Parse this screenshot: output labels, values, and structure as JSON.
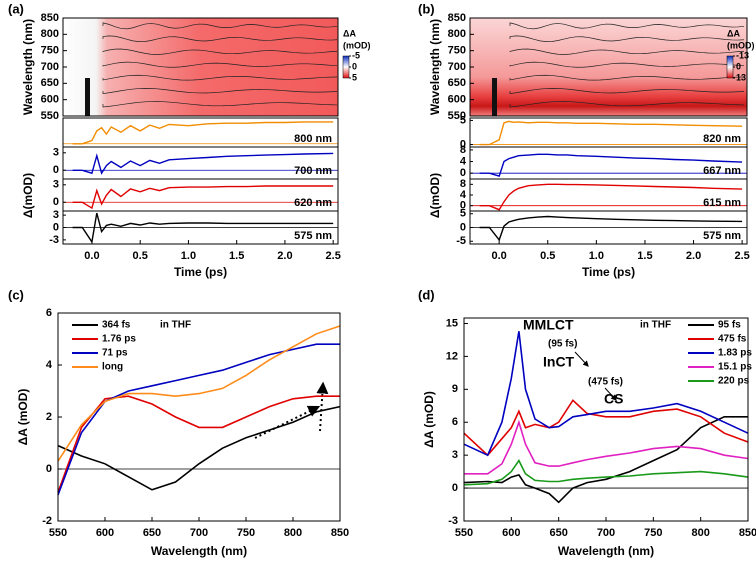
{
  "chart_data": [
    {
      "type": "heatmap",
      "panel": "(a)",
      "ylabel": "Wavelength (nm)",
      "ylim": [
        550,
        850
      ],
      "yticks": [
        550,
        600,
        650,
        700,
        750,
        800,
        850
      ],
      "colorbar_label": [
        "ΔA",
        "(mOD)"
      ],
      "colorbar_lim": [
        -5,
        5
      ],
      "colorbar_ticks": [
        -5,
        0,
        5
      ]
    },
    {
      "type": "traces",
      "xlabel": "Time (ps)",
      "ylabel": "Δ(mOD)",
      "xlim": [
        -0.3,
        2.55
      ],
      "xticks": [
        {
          "value": 0,
          "label": "0.0"
        },
        0.5,
        {
          "value": 1,
          "label": "1.0"
        },
        1.5,
        {
          "value": 2,
          "label": "2.0"
        },
        2.5
      ],
      "x": [
        -0.2,
        -0.1,
        0,
        0.05,
        0.1,
        0.15,
        0.2,
        0.3,
        0.4,
        0.5,
        0.6,
        0.7,
        0.8,
        1.0,
        1.2,
        1.4,
        1.6,
        1.8,
        2.0,
        2.2,
        2.5
      ],
      "series": [
        {
          "name": "800 nm",
          "color": "#f28c00",
          "ylim": [
            -0.5,
            4
          ],
          "yticks": [],
          "values": [
            0,
            0,
            0.5,
            2.0,
            2.5,
            1.5,
            2.6,
            1.8,
            2.8,
            2.0,
            2.9,
            2.4,
            3.0,
            2.8,
            3.1,
            3.2,
            3.2,
            3.3,
            3.3,
            3.4,
            3.4
          ]
        },
        {
          "name": "700 nm",
          "color": "#0000c0",
          "ylim": [
            -1.5,
            4
          ],
          "yticks": [
            0,
            3
          ],
          "values": [
            0,
            0,
            -0.5,
            2.5,
            -0.5,
            0.8,
            1.5,
            0.5,
            1.6,
            0.8,
            1.7,
            1.2,
            1.8,
            2.0,
            2.2,
            2.4,
            2.5,
            2.6,
            2.7,
            2.8,
            2.9
          ]
        },
        {
          "name": "620 nm",
          "color": "#e00000",
          "ylim": [
            -1.5,
            4
          ],
          "yticks": [
            0,
            3
          ],
          "values": [
            0,
            0,
            -1,
            2,
            -0.3,
            1.2,
            2.2,
            1.0,
            2.3,
            1.8,
            2.4,
            2.0,
            2.5,
            2.6,
            2.6,
            2.7,
            2.7,
            2.8,
            2.8,
            2.8,
            2.8
          ]
        },
        {
          "name": "575 nm",
          "color": "#000000",
          "ylim": [
            -4,
            4
          ],
          "yticks": [
            -3,
            0,
            3
          ],
          "values": [
            0,
            0,
            -3.5,
            3.5,
            -1.0,
            0.5,
            0.8,
            0.3,
            1.0,
            0.6,
            1.1,
            0.8,
            1.0,
            1.1,
            1.1,
            1.0,
            1.0,
            1.0,
            1.0,
            1.0,
            1.0
          ]
        }
      ]
    },
    {
      "type": "heatmap",
      "panel": "(b)",
      "ylabel": "Wavelength (nm)",
      "ylim": [
        550,
        850
      ],
      "yticks": [
        550,
        600,
        650,
        700,
        750,
        800,
        850
      ],
      "colorbar_label": [
        "ΔA",
        "(mOD)"
      ],
      "colorbar_lim": [
        -13,
        13
      ],
      "colorbar_ticks": [
        -13,
        0,
        13
      ]
    },
    {
      "type": "traces",
      "xlabel": "Time (ps)",
      "ylabel": "Δ(mOD)",
      "xlim": [
        -0.3,
        2.55
      ],
      "xticks": [
        {
          "value": 0,
          "label": "0.0"
        },
        0.5,
        {
          "value": 1,
          "label": "1.0"
        },
        1.5,
        {
          "value": 2,
          "label": "2.0"
        },
        2.5
      ],
      "x": [
        -0.2,
        -0.1,
        0,
        0.05,
        0.1,
        0.15,
        0.2,
        0.3,
        0.4,
        0.5,
        0.6,
        0.7,
        0.8,
        1.0,
        1.2,
        1.4,
        1.6,
        1.8,
        2.0,
        2.2,
        2.5
      ],
      "series": [
        {
          "name": "820 nm",
          "color": "#f28c00",
          "ylim": [
            -0.5,
            5.5
          ],
          "yticks": [
            0,
            5
          ],
          "values": [
            0,
            0,
            1,
            4.5,
            4.8,
            4.6,
            4.7,
            4.5,
            4.6,
            4.6,
            4.5,
            4.5,
            4.4,
            4.4,
            4.3,
            4.2,
            4.2,
            4.1,
            4.0,
            3.9,
            3.8
          ]
        },
        {
          "name": "667 nm",
          "color": "#0000c0",
          "ylim": [
            -2,
            9
          ],
          "yticks": [
            0,
            4,
            8
          ],
          "values": [
            0,
            0,
            -1,
            4,
            5,
            5.5,
            6,
            6.2,
            6.5,
            6.5,
            6.3,
            6.3,
            6.0,
            5.8,
            5.5,
            5.2,
            5.0,
            4.7,
            4.5,
            4.2,
            3.8
          ]
        },
        {
          "name": "615 nm",
          "color": "#e00000",
          "ylim": [
            -2,
            10
          ],
          "yticks": [
            0,
            4,
            8
          ],
          "values": [
            0,
            0,
            -1.5,
            1.5,
            4,
            5.5,
            6.5,
            7.5,
            7.8,
            8,
            8,
            7.9,
            7.9,
            7.8,
            7.6,
            7.4,
            7.2,
            7.0,
            6.8,
            6.5,
            6.2
          ]
        },
        {
          "name": "575 nm",
          "color": "#000000",
          "ylim": [
            -6,
            6
          ],
          "yticks": [
            -5,
            0,
            5
          ],
          "values": [
            0,
            0,
            -4.5,
            0.5,
            2,
            2.5,
            3,
            3.5,
            3.8,
            4,
            3.8,
            3.6,
            3.5,
            3.2,
            3.0,
            2.8,
            2.6,
            2.5,
            2.4,
            2.3,
            2.2
          ]
        }
      ]
    },
    {
      "type": "line",
      "panel": "(c)",
      "xlabel": "Wavelength (nm)",
      "ylabel": "ΔA (mOD)",
      "xlim": [
        550,
        850
      ],
      "xticks": [
        550,
        600,
        650,
        700,
        750,
        800,
        850
      ],
      "ylim": [
        -2,
        6
      ],
      "yticks": [
        -2,
        0,
        2,
        4,
        6
      ],
      "annotations": [
        {
          "text": "in THF",
          "color": "#000000"
        }
      ],
      "x": [
        550,
        575,
        600,
        625,
        650,
        675,
        700,
        725,
        750,
        775,
        800,
        825,
        850
      ],
      "series": [
        {
          "name": "364 fs",
          "color": "#000000",
          "values": [
            0.9,
            0.5,
            0.2,
            -0.3,
            -0.8,
            -0.5,
            0.2,
            0.8,
            1.2,
            1.5,
            1.8,
            2.2,
            2.4
          ]
        },
        {
          "name": "1.76 ps",
          "color": "#e00000",
          "values": [
            -0.9,
            1.6,
            2.7,
            2.8,
            2.5,
            2.0,
            1.6,
            1.6,
            2.0,
            2.4,
            2.7,
            2.8,
            2.8
          ]
        },
        {
          "name": "71 ps",
          "color": "#0000c0",
          "values": [
            -1.0,
            1.4,
            2.6,
            3.0,
            3.2,
            3.4,
            3.6,
            3.8,
            4.1,
            4.4,
            4.6,
            4.8,
            4.8
          ]
        },
        {
          "name": "long",
          "color": "#ff8c1a",
          "values": [
            0.3,
            1.7,
            2.6,
            2.9,
            2.9,
            2.8,
            2.9,
            3.1,
            3.6,
            4.2,
            4.7,
            5.2,
            5.5
          ]
        }
      ]
    },
    {
      "type": "line",
      "panel": "(d)",
      "xlabel": "Wavelength (nm)",
      "ylabel": "ΔA (mOD)",
      "xlim": [
        550,
        850
      ],
      "xticks": [
        550,
        600,
        650,
        700,
        750,
        800,
        850
      ],
      "ylim": [
        -3,
        15.5
      ],
      "yticks": [
        -3,
        0,
        3,
        6,
        9,
        12,
        15
      ],
      "annotations": [
        {
          "text": "in THF",
          "color": "#000000"
        },
        {
          "text": "MMLCT",
          "color": "#000000"
        },
        {
          "text": "(95 fs)",
          "color": "#000000"
        },
        {
          "text": "InCT",
          "color": "#e00000"
        },
        {
          "text": "(475 fs)",
          "color": "#000000"
        },
        {
          "text": "CS",
          "color": "#0000c0"
        }
      ],
      "x": [
        550,
        575,
        590,
        600,
        608,
        615,
        625,
        640,
        650,
        665,
        680,
        700,
        725,
        750,
        775,
        800,
        825,
        850
      ],
      "series": [
        {
          "name": "95 fs",
          "color": "#000000",
          "values": [
            0.5,
            0.6,
            0.5,
            1.0,
            1.2,
            0.3,
            0.0,
            -0.5,
            -1.3,
            0,
            0.5,
            0.8,
            1.5,
            2.5,
            3.5,
            5.5,
            6.5,
            6.5
          ]
        },
        {
          "name": "475 fs",
          "color": "#e00000",
          "values": [
            5,
            3,
            4.5,
            5.5,
            7.0,
            5.5,
            5.8,
            5.5,
            6.0,
            8.0,
            6.8,
            6.5,
            6.5,
            7.0,
            7.2,
            6.5,
            5.0,
            4.2
          ]
        },
        {
          "name": "1.83 ps",
          "color": "#0000c0",
          "values": [
            4,
            3,
            6,
            10,
            14.3,
            9,
            6.3,
            5.5,
            5.6,
            6.5,
            6.7,
            7.0,
            7.0,
            7.3,
            7.7,
            7.0,
            6.0,
            5.0
          ]
        },
        {
          "name": "15.1 ps",
          "color": "#e020c0",
          "values": [
            1.3,
            1.3,
            2.2,
            4,
            6.0,
            4,
            2.3,
            2.0,
            2.0,
            2.3,
            2.6,
            2.9,
            3.2,
            3.6,
            3.8,
            3.6,
            3.0,
            2.7
          ]
        },
        {
          "name": "220 ps",
          "color": "#1a9a1a",
          "values": [
            0.3,
            0.4,
            0.8,
            1.5,
            2.5,
            1.3,
            0.7,
            0.6,
            0.6,
            0.8,
            0.9,
            1.0,
            1.1,
            1.3,
            1.4,
            1.5,
            1.3,
            1.0
          ]
        }
      ]
    }
  ]
}
